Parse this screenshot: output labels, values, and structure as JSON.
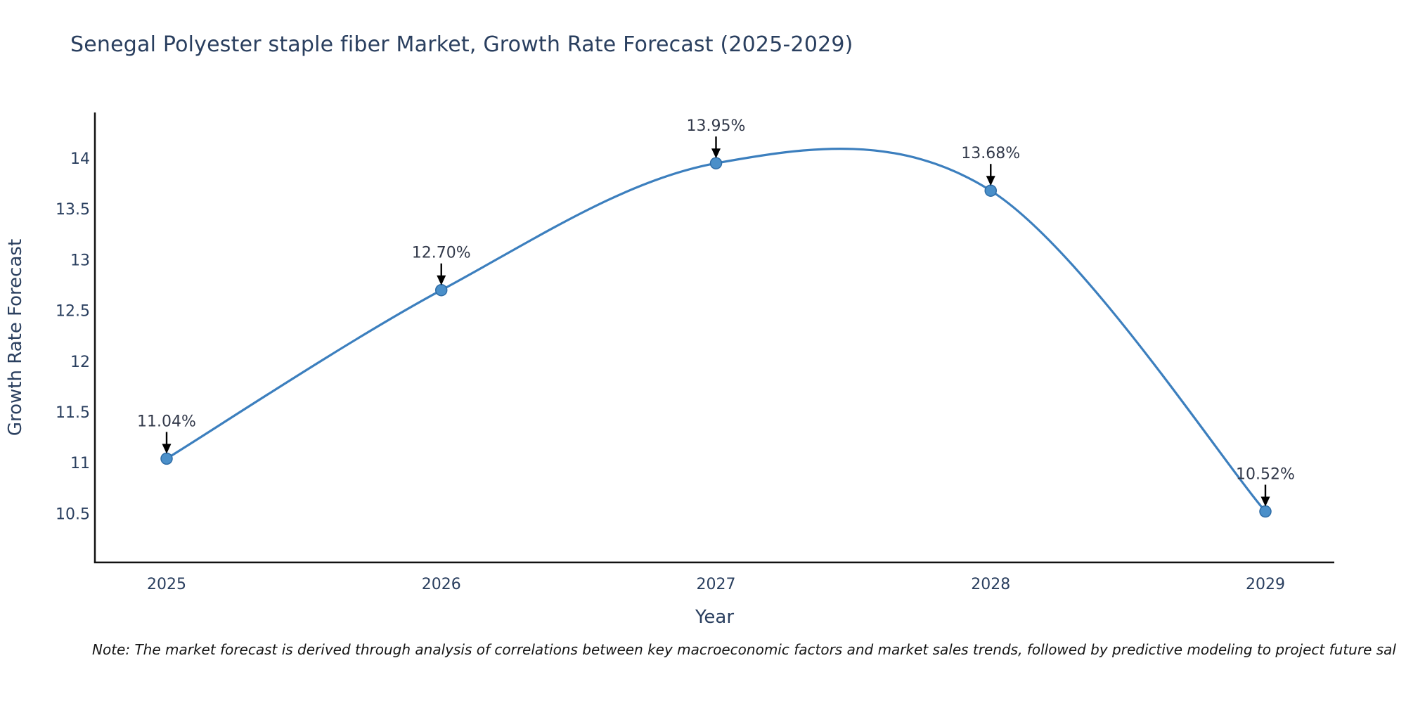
{
  "title": "Senegal Polyester staple fiber Market, Growth Rate Forecast (2025-2029)",
  "note": "Note: The market forecast is derived through analysis of correlations between key macroeconomic factors and market sales trends, followed by predictive modeling to project future sal",
  "chart_data": {
    "type": "line",
    "line_shape": "spline",
    "title": "Senegal Polyester staple fiber Market, Growth Rate Forecast (2025-2029)",
    "xlabel": "Year",
    "ylabel": "Growth Rate Forecast",
    "categories": [
      "2025",
      "2026",
      "2027",
      "2028",
      "2029"
    ],
    "x": [
      2025,
      2026,
      2027,
      2028,
      2029
    ],
    "series": [
      {
        "name": "Growth Rate Forecast",
        "values": [
          11.04,
          12.7,
          13.95,
          13.68,
          10.52
        ]
      }
    ],
    "point_labels": [
      "11.04%",
      "12.70%",
      "13.95%",
      "13.68%",
      "10.52%"
    ],
    "yticks": [
      10.5,
      11,
      11.5,
      12,
      12.5,
      13,
      13.5,
      14
    ],
    "ytick_labels": [
      "10.5",
      "11",
      "11.5",
      "12",
      "12.5",
      "13",
      "13.5",
      "14"
    ],
    "ylim": [
      10.03,
      14.45
    ],
    "grid": false,
    "legend": "none",
    "annotations_style": "down-arrow-to-point",
    "colors": {
      "line": "#3c7fbe",
      "marker_fill": "#4a8fc9",
      "marker_edge": "#2e6ca6",
      "axis": "#111111",
      "axis_text": "#2a3f5f",
      "annotation_text": "#32394a",
      "arrow": "#000000",
      "background": "#ffffff"
    }
  }
}
